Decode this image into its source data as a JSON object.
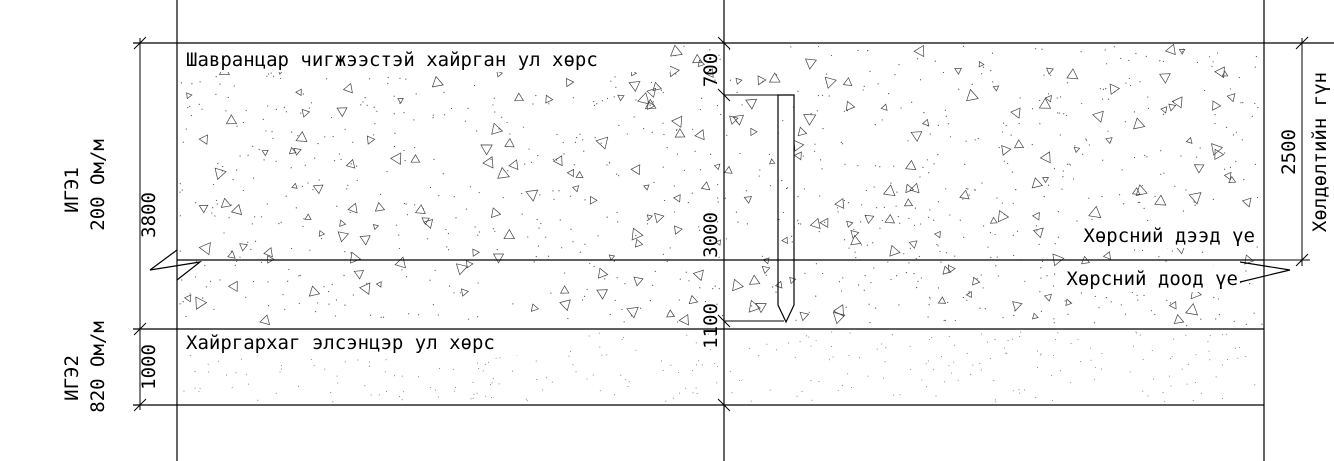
{
  "layers": [
    {
      "label": "Шавранцар чигжээстэй хайрган ул хөрс",
      "ige": "ИГЭ1",
      "resistivity": "200 Ом/м",
      "thickness": "3800"
    },
    {
      "label": "Хайргархаг элсэнцэр ул хөрс",
      "ige": "ИГЭ2",
      "resistivity": "820 Ом/м",
      "thickness": "1000"
    }
  ],
  "pile_dimensions": [
    "700",
    "3000",
    "1100"
  ],
  "upper_layer": "Хөрсний дээд үе",
  "lower_layer": "Хөрсний доод үе",
  "freezing": {
    "depth": "2500",
    "label": "Хөлдөлтийн гүн"
  }
}
